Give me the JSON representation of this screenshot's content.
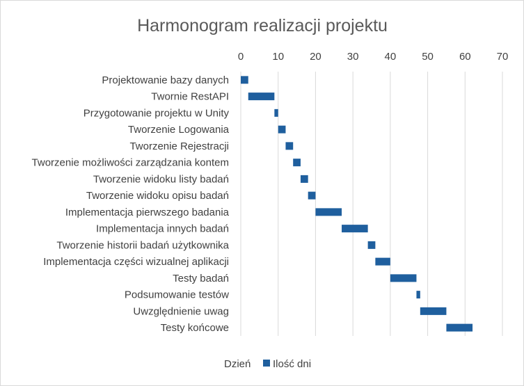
{
  "chart_data": {
    "type": "bar",
    "orientation": "horizontal",
    "stacked": true,
    "title": "Harmonogram realizacji projektu",
    "xlim": [
      0,
      70
    ],
    "x_ticks": [
      0,
      10,
      20,
      30,
      40,
      50,
      60,
      70
    ],
    "x_axis_position": "top",
    "grid": true,
    "legend_position": "bottom",
    "categories": [
      "Projektowanie bazy danych",
      "Twornie RestAPI",
      "Przygotowanie projektu w Unity",
      "Tworzenie Logowania",
      "Tworzenie Rejestracji",
      "Tworzenie możliwości zarządzania kontem",
      "Tworzenie widoku listy badań",
      "Tworzenie widoku opisu badań",
      "Implementacja pierwszego badania",
      "Implementacja innych badań",
      "Tworzenie historii badań użytkownika",
      "Implementacja części wizualnej aplikacji",
      "Testy badań",
      "Podsumowanie testów",
      "Uwzględnienie uwag",
      "Testy końcowe"
    ],
    "series": [
      {
        "name": "Dzień",
        "color": "none",
        "values": [
          0,
          2,
          9,
          10,
          12,
          14,
          16,
          18,
          20,
          27,
          34,
          36,
          40,
          47,
          48,
          55
        ]
      },
      {
        "name": "Ilość dni",
        "color": "#1f5f9e",
        "values": [
          2,
          7,
          1,
          2,
          2,
          2,
          2,
          2,
          7,
          7,
          2,
          4,
          7,
          1,
          7,
          7
        ]
      }
    ]
  }
}
